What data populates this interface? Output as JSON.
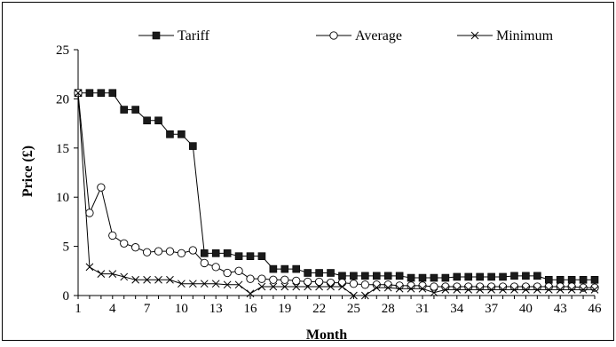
{
  "chart_data": {
    "type": "line",
    "title": "",
    "xlabel": "Month",
    "ylabel": "Price (£)",
    "ylim": [
      0,
      25
    ],
    "yticks": [
      0,
      5,
      10,
      15,
      20,
      25
    ],
    "xticks": [
      1,
      4,
      7,
      10,
      13,
      16,
      19,
      22,
      25,
      28,
      31,
      34,
      37,
      40,
      43,
      46
    ],
    "grid": false,
    "legend_position": "top",
    "x": [
      1,
      2,
      3,
      4,
      5,
      6,
      7,
      8,
      9,
      10,
      11,
      12,
      13,
      14,
      15,
      16,
      17,
      18,
      19,
      20,
      21,
      22,
      23,
      24,
      25,
      26,
      27,
      28,
      29,
      30,
      31,
      32,
      33,
      34,
      35,
      36,
      37,
      38,
      39,
      40,
      41,
      42,
      43,
      44,
      45,
      46
    ],
    "series": [
      {
        "name": "Tariff",
        "marker": "filled-square",
        "values": [
          20.6,
          20.6,
          20.6,
          20.6,
          18.9,
          18.9,
          17.8,
          17.8,
          16.4,
          16.4,
          15.2,
          4.3,
          4.3,
          4.3,
          4.0,
          4.0,
          4.0,
          2.7,
          2.7,
          2.7,
          2.3,
          2.3,
          2.3,
          2.0,
          2.0,
          2.0,
          2.0,
          2.0,
          2.0,
          1.8,
          1.8,
          1.8,
          1.8,
          1.9,
          1.9,
          1.9,
          1.9,
          1.9,
          2.0,
          2.0,
          2.0,
          1.6,
          1.6,
          1.6,
          1.6,
          1.6
        ]
      },
      {
        "name": "Average",
        "marker": "open-circle",
        "values": [
          20.6,
          8.4,
          11.0,
          6.1,
          5.3,
          4.9,
          4.4,
          4.5,
          4.5,
          4.3,
          4.6,
          3.3,
          2.9,
          2.3,
          2.5,
          1.7,
          1.7,
          1.6,
          1.6,
          1.5,
          1.4,
          1.4,
          1.3,
          1.3,
          1.2,
          1.1,
          1.1,
          1.1,
          1.0,
          1.0,
          1.0,
          0.9,
          0.9,
          0.9,
          0.9,
          0.9,
          0.9,
          0.9,
          0.9,
          0.9,
          0.9,
          0.9,
          0.9,
          0.9,
          0.8,
          0.8
        ]
      },
      {
        "name": "Minimum",
        "marker": "cross",
        "values": [
          20.6,
          2.9,
          2.2,
          2.2,
          1.9,
          1.6,
          1.6,
          1.6,
          1.6,
          1.2,
          1.2,
          1.2,
          1.2,
          1.1,
          1.1,
          0.2,
          0.9,
          0.9,
          0.9,
          0.9,
          0.9,
          0.9,
          0.9,
          0.9,
          0.0,
          0.0,
          0.8,
          0.8,
          0.7,
          0.7,
          0.7,
          0.3,
          0.6,
          0.6,
          0.6,
          0.6,
          0.6,
          0.6,
          0.6,
          0.6,
          0.6,
          0.6,
          0.6,
          0.6,
          0.6,
          0.6
        ]
      }
    ]
  }
}
